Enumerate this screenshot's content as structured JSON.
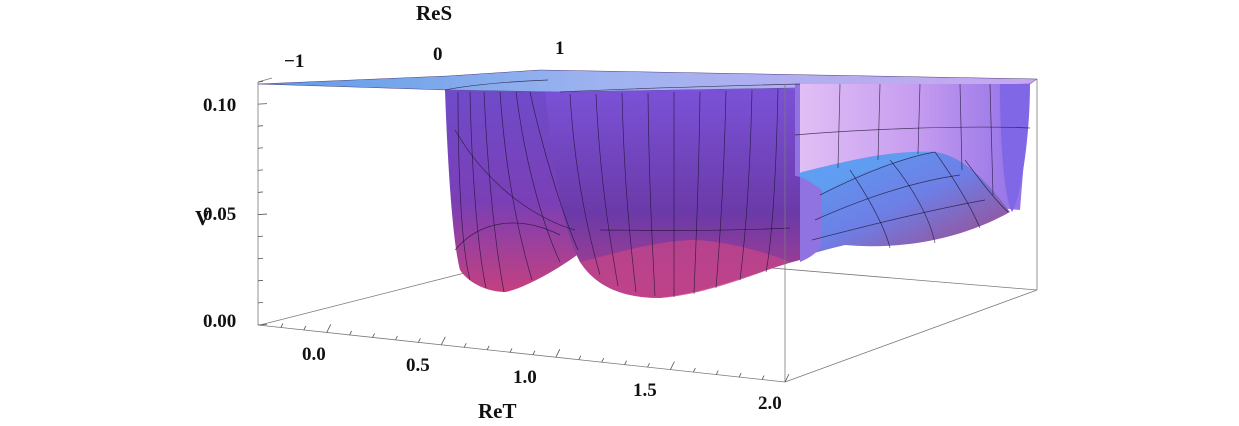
{
  "chart_data": {
    "type": "surface3d",
    "title": "",
    "xlabel": "ReT",
    "ylabel": "ReS",
    "zlabel": "V",
    "x_ticks": [
      "0.0",
      "0.5",
      "1.0",
      "1.5",
      "2.0"
    ],
    "y_ticks": [
      "−1",
      "0",
      "1"
    ],
    "z_ticks": [
      "0.00",
      "0.05",
      "0.10"
    ],
    "xlim": [
      -0.3,
      2.0
    ],
    "ylim": [
      -1.5,
      1.5
    ],
    "zlim": [
      0.0,
      0.11
    ],
    "minima": [
      {
        "ReT": 0.7,
        "V": 0.013
      },
      {
        "ReT": 1.15,
        "V": 0.012
      },
      {
        "ReT": 1.95,
        "V": 0.045
      }
    ],
    "clipped_at": 0.11,
    "colors": {
      "surface_top": "#9a7fe6",
      "surface_deep": "#c83b86",
      "surface_light": "#d4aef5",
      "surface_blue": "#5b9df0",
      "mesh": "#1b1030"
    }
  }
}
